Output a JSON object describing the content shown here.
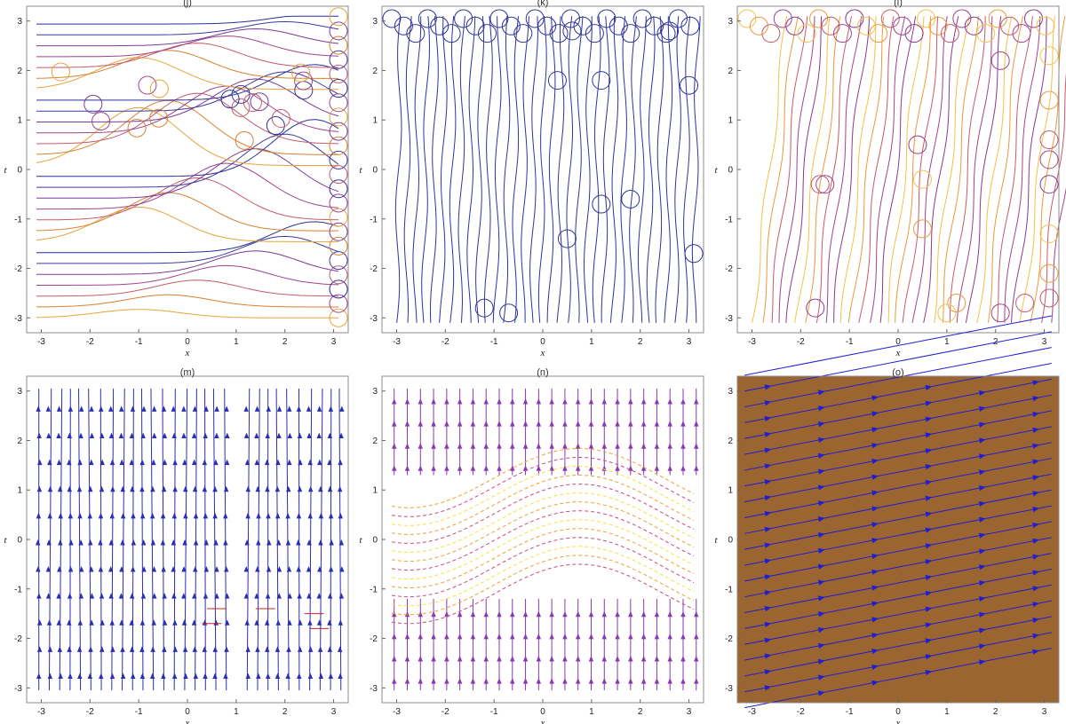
{
  "chart_data": [
    {
      "id": "j",
      "type": "streamplot",
      "title": "(j)",
      "xlabel": "x",
      "ylabel": "t",
      "xlim": [
        -3.3,
        3.3
      ],
      "ylim": [
        -3.3,
        3.3
      ],
      "xticks": [
        "-3",
        "-2",
        "-1",
        "0",
        "1",
        "2",
        "3"
      ],
      "yticks": [
        "-3",
        "-2",
        "-1",
        "0",
        "1",
        "2",
        "3"
      ],
      "background": "#ffffff",
      "palette": [
        "#e8a33a",
        "#d9802e",
        "#c45a6a",
        "#a0448a",
        "#7a3a9a",
        "#3d3aa0",
        "#2a2f9a"
      ],
      "style": "curves"
    },
    {
      "id": "k",
      "type": "streamplot",
      "title": "(k)",
      "xlabel": "x",
      "ylabel": "t",
      "xlim": [
        -3.3,
        3.3
      ],
      "ylim": [
        -3.3,
        3.3
      ],
      "xticks": [
        "-3",
        "-2",
        "-1",
        "0",
        "1",
        "2",
        "3"
      ],
      "yticks": [
        "-3",
        "-2",
        "-1",
        "0",
        "1",
        "2",
        "3"
      ],
      "background": "#ffffff",
      "palette": [
        "#2f3596"
      ],
      "style": "vertical"
    },
    {
      "id": "l",
      "type": "streamplot",
      "title": "(l)",
      "xlabel": "x",
      "ylabel": "t",
      "xlim": [
        -3.3,
        3.3
      ],
      "ylim": [
        -3.3,
        3.3
      ],
      "xticks": [
        "-3",
        "-2",
        "-1",
        "0",
        "1",
        "2",
        "3"
      ],
      "yticks": [
        "-3",
        "-2",
        "-1",
        "0",
        "1",
        "2",
        "3"
      ],
      "background": "#ffffff",
      "palette": [
        "#f2c14a",
        "#e89a3a",
        "#c45a6a",
        "#a0448a",
        "#8a3a8a"
      ],
      "style": "slanted"
    },
    {
      "id": "m",
      "type": "streamplot",
      "title": "(m)",
      "xlabel": "x",
      "ylabel": "t",
      "xlim": [
        -3.3,
        3.3
      ],
      "ylim": [
        -3.3,
        3.3
      ],
      "xticks": [
        "-3",
        "-2",
        "-1",
        "0",
        "1",
        "2",
        "3"
      ],
      "yticks": [
        "-3",
        "-2",
        "-1",
        "0",
        "1",
        "2",
        "3"
      ],
      "background": "#ffffff",
      "palette": [
        "#2b2fb0"
      ],
      "style": "arrows-up"
    },
    {
      "id": "n",
      "type": "streamplot",
      "title": "(n)",
      "xlabel": "x",
      "ylabel": "t",
      "xlim": [
        -3.3,
        3.3
      ],
      "ylim": [
        -3.3,
        3.3
      ],
      "xticks": [
        "-3",
        "-2",
        "-1",
        "0",
        "1",
        "2",
        "3"
      ],
      "yticks": [
        "-3",
        "-2",
        "-1",
        "0",
        "1",
        "2",
        "3"
      ],
      "background": "#ffffff",
      "palette": [
        "#8a3ab0",
        "#c84a7a",
        "#f0a030",
        "#f7e040"
      ],
      "style": "arrows-band"
    },
    {
      "id": "o",
      "type": "streamplot",
      "title": "(o)",
      "xlabel": "x",
      "ylabel": "t",
      "xlim": [
        -3.3,
        3.3
      ],
      "ylim": [
        -3.3,
        3.3
      ],
      "xticks": [
        "-3",
        "-2",
        "-1",
        "0",
        "1",
        "2",
        "3"
      ],
      "yticks": [
        "-3",
        "-2",
        "-1",
        "0",
        "1",
        "2",
        "3"
      ],
      "background": "#9a6530",
      "palette": [
        "#1f1fcf"
      ],
      "style": "arrows-diag"
    }
  ]
}
